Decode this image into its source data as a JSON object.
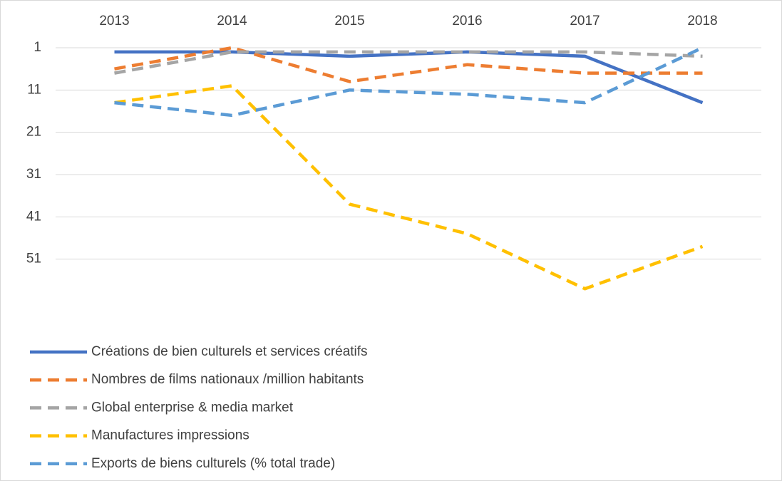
{
  "chart_data": {
    "type": "line",
    "categories": [
      "2013",
      "2014",
      "2015",
      "2016",
      "2017",
      "2018"
    ],
    "ylim": [
      1,
      61
    ],
    "yticks": [
      1,
      11,
      21,
      31,
      41,
      51
    ],
    "y_reversed": true,
    "grid": true,
    "legend": "bottom",
    "series": [
      {
        "name": "Créations de bien culturels et services créatifs",
        "color": "#4472c4",
        "dash": "solid",
        "values": [
          2,
          2,
          3,
          2,
          3,
          14
        ]
      },
      {
        "name": "Nombres de films nationaux /million habitants",
        "color": "#ed7d31",
        "dash": "dashed",
        "values": [
          6,
          1,
          9,
          5,
          7,
          7
        ]
      },
      {
        "name": "Global enterprise & media market",
        "color": "#a5a5a5",
        "dash": "dashed",
        "values": [
          7,
          2,
          2,
          2,
          2,
          3
        ]
      },
      {
        "name": "Manufactures impressions",
        "color": "#ffc000",
        "dash": "dashed",
        "values": [
          14,
          10,
          38,
          45,
          58,
          48
        ]
      },
      {
        "name": "Exports de biens culturels (% total trade)",
        "color": "#5b9bd5",
        "dash": "dashed",
        "values": [
          14,
          17,
          11,
          12,
          14,
          1
        ]
      }
    ]
  }
}
